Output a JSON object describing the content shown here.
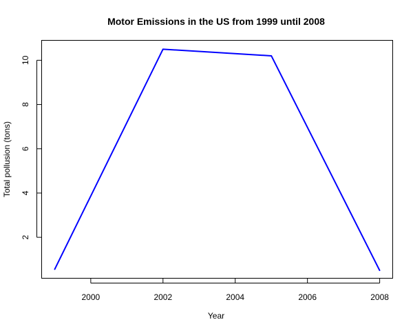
{
  "chart_data": {
    "type": "line",
    "title": "Motor Emissions in the US from 1999 until 2008",
    "xlabel": "Year",
    "ylabel": "Total pollusion (tons)",
    "x": [
      1999,
      2002,
      2005,
      2008
    ],
    "series": [
      {
        "values": [
          0.55,
          10.5,
          10.2,
          0.5
        ]
      }
    ],
    "xlim": [
      1998.64,
      2008.36
    ],
    "ylim": [
      0.15,
      10.9
    ],
    "xticks": [
      2000,
      2002,
      2004,
      2006,
      2008
    ],
    "yticks": [
      2,
      4,
      6,
      8,
      10
    ],
    "line_color": "#0000ff",
    "grid": false,
    "legend": "none"
  }
}
